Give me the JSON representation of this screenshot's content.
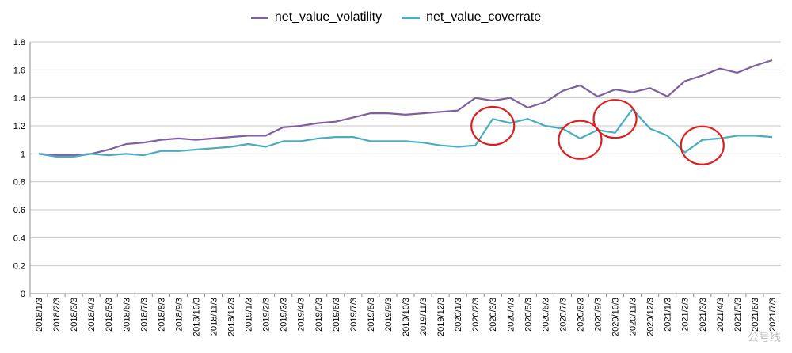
{
  "colors": {
    "volatility": "#7e5fa1",
    "coverrate": "#4aacbf",
    "grid": "#c8c8c8",
    "axis": "#8c8c8c",
    "highlight": "#e01c1c"
  },
  "watermark": "公号线",
  "chart_data": {
    "type": "line",
    "title": "",
    "xlabel": "",
    "ylabel": "",
    "ylim": [
      0,
      1.8
    ],
    "yticks": [
      0,
      0.2,
      0.4,
      0.6,
      0.8,
      1,
      1.2,
      1.4,
      1.6,
      1.8
    ],
    "ytick_labels": [
      "0",
      "0.2",
      "0.4",
      "0.6",
      "0.8",
      "1",
      "1.2",
      "1.4",
      "1.6",
      "1.8"
    ],
    "grid": "horizontal",
    "legend": "top-center",
    "x_tick_labels": [
      "2018/1/3",
      "2018/2/3",
      "2018/3/3",
      "2018/4/3",
      "2018/5/3",
      "2018/6/3",
      "2018/7/3",
      "2018/8/3",
      "2018/9/3",
      "2018/10/3",
      "2018/11/3",
      "2018/12/3",
      "2019/1/3",
      "2019/2/3",
      "2019/3/3",
      "2019/4/3",
      "2019/5/3",
      "2019/6/3",
      "2019/7/3",
      "2019/8/3",
      "2019/9/3",
      "2019/10/3",
      "2019/11/3",
      "2019/12/3",
      "2020/1/3",
      "2020/2/3",
      "2020/3/3",
      "2020/4/3",
      "2020/5/3",
      "2020/6/3",
      "2020/7/3",
      "2020/8/3",
      "2020/9/3",
      "2020/10/3",
      "2020/11/3",
      "2020/12/3",
      "2021/1/3",
      "2021/2/3",
      "2021/3/3",
      "2021/4/3",
      "2021/5/3",
      "2021/6/3",
      "2021/7/3"
    ],
    "series": [
      {
        "name": "net_value_volatility",
        "values": [
          1.0,
          0.99,
          0.99,
          1.0,
          1.03,
          1.07,
          1.08,
          1.1,
          1.11,
          1.1,
          1.11,
          1.12,
          1.13,
          1.13,
          1.19,
          1.2,
          1.22,
          1.23,
          1.26,
          1.29,
          1.29,
          1.28,
          1.29,
          1.3,
          1.31,
          1.4,
          1.38,
          1.4,
          1.33,
          1.37,
          1.45,
          1.49,
          1.41,
          1.46,
          1.44,
          1.47,
          1.41,
          1.52,
          1.56,
          1.61,
          1.58,
          1.63,
          1.67
        ]
      },
      {
        "name": "net_value_coverrate",
        "values": [
          1.0,
          0.98,
          0.98,
          1.0,
          0.99,
          1.0,
          0.99,
          1.02,
          1.02,
          1.03,
          1.04,
          1.05,
          1.07,
          1.05,
          1.09,
          1.09,
          1.11,
          1.12,
          1.12,
          1.09,
          1.09,
          1.09,
          1.08,
          1.06,
          1.05,
          1.06,
          1.25,
          1.22,
          1.25,
          1.2,
          1.18,
          1.11,
          1.17,
          1.15,
          1.32,
          1.18,
          1.13,
          1.01,
          1.1,
          1.11,
          1.13,
          1.13,
          1.12
        ]
      }
    ],
    "annotations": [
      {
        "type": "circle",
        "near_x": "2020/3/3",
        "near_y": 1.2
      },
      {
        "type": "circle",
        "near_x": "2020/8/3",
        "near_y": 1.1
      },
      {
        "type": "circle",
        "near_x": "2020/10/3",
        "near_y": 1.25
      },
      {
        "type": "circle",
        "near_x": "2021/3/3",
        "near_y": 1.06
      }
    ]
  }
}
